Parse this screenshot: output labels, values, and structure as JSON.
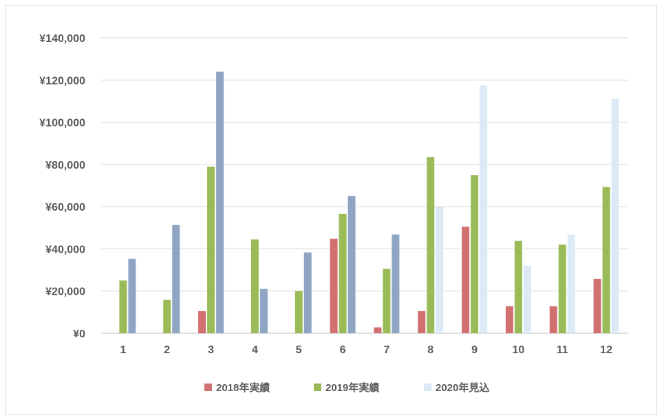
{
  "chart_data": {
    "type": "bar",
    "categories": [
      "1",
      "2",
      "3",
      "4",
      "5",
      "6",
      "7",
      "8",
      "9",
      "10",
      "11",
      "12"
    ],
    "series": [
      {
        "name": "2018年実績",
        "color": "#d07070",
        "values": [
          0,
          0,
          10500,
          0,
          0,
          44800,
          2800,
          10500,
          50500,
          12800,
          12800,
          25800
        ]
      },
      {
        "name": "2019年実績",
        "color": "#9bbb59",
        "values": [
          25000,
          15800,
          79000,
          44500,
          20000,
          56500,
          30500,
          83500,
          75000,
          43800,
          42000,
          69300
        ]
      },
      {
        "name": "2020年見込",
        "color": "#8ea6c4",
        "color_alt": "#dce9f6",
        "values": [
          35300,
          51300,
          124000,
          21000,
          38300,
          65000,
          46800,
          60000,
          117500,
          32000,
          46800,
          111000
        ]
      }
    ],
    "series3_color_by_category": [
      "#8ea6c4",
      "#8ea6c4",
      "#8ea6c4",
      "#8ea6c4",
      "#8ea6c4",
      "#8ea6c4",
      "#8ea6c4",
      "#dce9f6",
      "#dce9f6",
      "#dce9f6",
      "#dce9f6",
      "#dce9f6"
    ],
    "y_ticks": [
      "¥0",
      "¥20,000",
      "¥40,000",
      "¥60,000",
      "¥80,000",
      "¥100,000",
      "¥120,000",
      "¥140,000"
    ],
    "ylim": [
      0,
      140000
    ],
    "grid": true,
    "legend_position": "bottom",
    "title": "",
    "xlabel": "",
    "ylabel": ""
  }
}
